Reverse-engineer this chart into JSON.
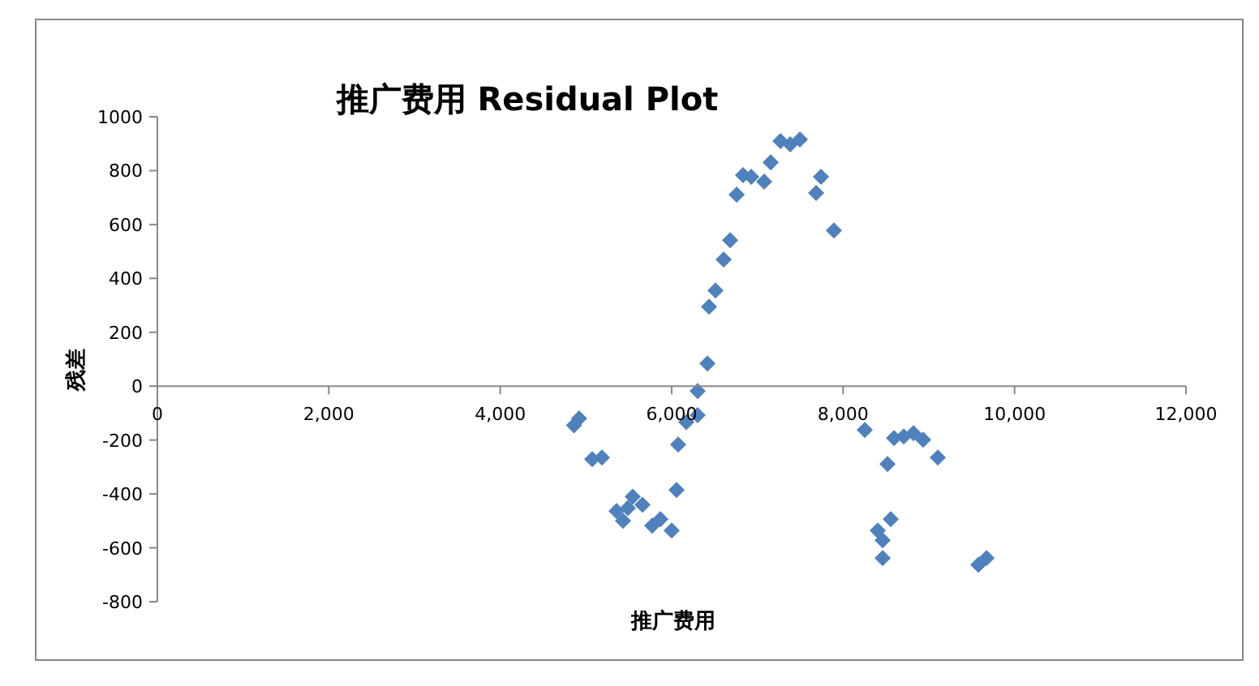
{
  "chart_data": {
    "type": "scatter",
    "title": "推广费用 Residual Plot",
    "xlabel": "推广费用",
    "ylabel": "残差",
    "marker": "diamond",
    "grid": false,
    "xlim": [
      0,
      12000
    ],
    "ylim": [
      -800,
      1000
    ],
    "xticks": [
      0,
      {
        "value": 2000,
        "label": "2,000"
      },
      {
        "value": 4000,
        "label": "4,000"
      },
      {
        "value": 6000,
        "label": "6,000"
      },
      {
        "value": 8000,
        "label": "8,000"
      },
      {
        "value": 10000,
        "label": "10,000"
      },
      {
        "value": 12000,
        "label": "12,000"
      }
    ],
    "yticks": [
      -800,
      -600,
      -400,
      -200,
      0,
      200,
      400,
      600,
      800,
      1000
    ],
    "series": [
      {
        "color": "#4f81bd",
        "x": [
          6303,
          6417,
          6436,
          6511,
          6606,
          6682,
          6758,
          6833,
          6928,
          7079,
          7155,
          7269,
          7383,
          7496,
          7685,
          7742,
          7893,
          4860,
          4920,
          5073,
          5186,
          5357,
          5432,
          5489,
          5546,
          5659,
          5773,
          5868,
          6000,
          6057,
          6076,
          6171,
          6303,
          8253,
          8594,
          8707,
          8821,
          8934,
          9105,
          8518,
          8556,
          8404,
          8461,
          8461,
          9578,
          9673
        ],
        "values": [
          -18,
          84,
          295,
          355,
          470,
          542,
          711,
          783,
          777,
          759,
          831,
          910,
          898,
          916,
          717,
          777,
          578,
          -145,
          -120,
          -271,
          -265,
          -464,
          -500,
          -452,
          -410,
          -440,
          -518,
          -494,
          -536,
          -385,
          -217,
          -133,
          -108,
          -163,
          -193,
          -187,
          -175,
          -199,
          -265,
          -289,
          -494,
          -536,
          -572,
          -638,
          -663,
          -638
        ]
      }
    ]
  }
}
